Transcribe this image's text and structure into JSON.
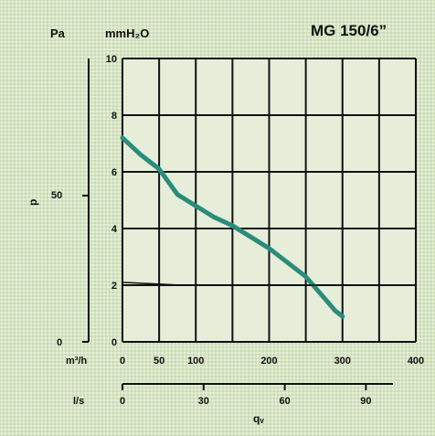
{
  "model_label": "MG 150/6”",
  "chart_data": {
    "type": "line",
    "title": "MG 150/6”",
    "y_unit_pa": "Pa",
    "y_unit_mmh2o": "mmH₂O",
    "y_axis_symbol": "p",
    "y_pa_ticks": [
      "50",
      "0"
    ],
    "xlabel": "qᵥ",
    "x_unit_m3h": "m³/h",
    "x_unit_ls": "l/s",
    "xlim": [
      0,
      400
    ],
    "ylim": [
      0,
      10
    ],
    "x_ticks": [
      0,
      50,
      100,
      150,
      200,
      250,
      300,
      350,
      400
    ],
    "x_tick_labels": [
      "0",
      "50",
      "100",
      "200",
      "300",
      "400"
    ],
    "x_tick_label_values": [
      0,
      50,
      100,
      200,
      300,
      400
    ],
    "y_ticks": [
      0,
      2,
      4,
      6,
      8,
      10
    ],
    "y_tick_labels": [
      "0",
      "2",
      "4",
      "6",
      "8",
      "10"
    ],
    "ls_ticks": [
      0,
      30,
      60,
      90
    ],
    "grid": true,
    "series": [
      {
        "color": "#2a8c7c",
        "x": [
          0,
          25,
          50,
          75,
          100,
          125,
          150,
          175,
          200,
          225,
          250,
          270,
          290,
          300
        ],
        "y": [
          7.2,
          6.6,
          6.1,
          5.2,
          4.8,
          4.4,
          4.1,
          3.7,
          3.3,
          2.8,
          2.3,
          1.7,
          1.1,
          0.9
        ]
      },
      {
        "color": "#111111",
        "x": [
          0,
          80,
          300
        ],
        "y": [
          2.1,
          2.0,
          2.0
        ]
      }
    ]
  }
}
